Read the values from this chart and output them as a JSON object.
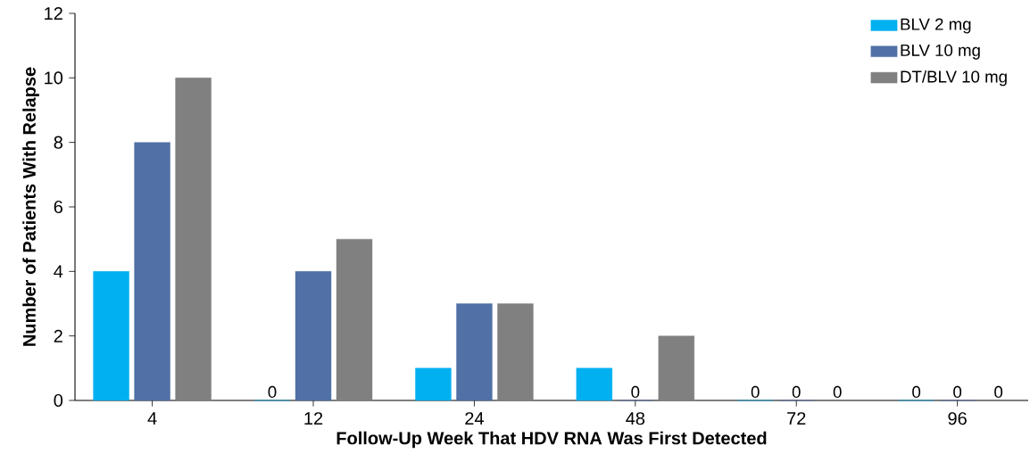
{
  "chart_data": {
    "type": "bar",
    "xlabel": "Follow-Up Week That HDV RNA Was First Detected",
    "ylabel": "Number of Patients With Relapse",
    "categories": [
      "4",
      "12",
      "24",
      "48",
      "72",
      "96"
    ],
    "series": [
      {
        "name": "BLV 2 mg",
        "color": "#00b0f0",
        "values": [
          4,
          0,
          1,
          1,
          0,
          0
        ],
        "value_labels": [
          null,
          "0",
          null,
          null,
          "0",
          "0"
        ]
      },
      {
        "name": "BLV 10 mg",
        "color": "#5070a6",
        "values": [
          8,
          4,
          3,
          0,
          0,
          0
        ],
        "value_labels": [
          null,
          null,
          null,
          "0",
          "0",
          "0"
        ]
      },
      {
        "name": "DT/BLV 10 mg",
        "color": "#808080",
        "values": [
          10,
          5,
          3,
          2,
          0,
          0
        ],
        "value_labels": [
          null,
          null,
          null,
          null,
          "0",
          "0"
        ]
      }
    ],
    "ylim": [
      0,
      12
    ],
    "yticks": [
      0,
      2,
      4,
      6,
      8,
      10,
      12
    ],
    "grid": false,
    "legend": "top right"
  }
}
